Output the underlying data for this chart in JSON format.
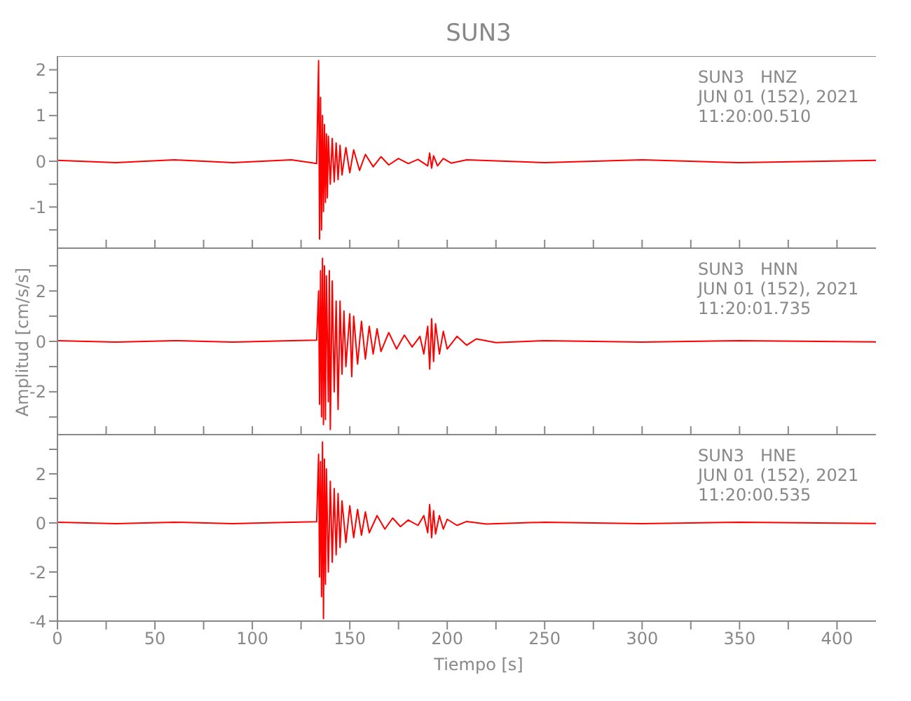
{
  "chart_data": [
    {
      "type": "line",
      "title": "SUN3",
      "annotations": [
        "SUN3   HNZ",
        "JUN 01 (152), 2021",
        "11:20:00.510"
      ],
      "xlim": [
        0,
        420
      ],
      "xticks": [
        0,
        {
          "value": 25,
          "label": null
        },
        50,
        {
          "value": 75,
          "label": null
        },
        100,
        {
          "value": 125,
          "label": null
        },
        150,
        {
          "value": 175,
          "label": null
        },
        200,
        {
          "value": 225,
          "label": null
        },
        250,
        {
          "value": 275,
          "label": null
        },
        300,
        {
          "value": 325,
          "label": null
        },
        350,
        {
          "value": 375,
          "label": null
        },
        400
      ],
      "ylim": [
        -1.9,
        2.3
      ],
      "yticks": [
        {
          "value": -1.5,
          "label": null
        },
        -1,
        {
          "value": -0.5,
          "label": null
        },
        0,
        {
          "value": 0.5,
          "label": null
        },
        1,
        {
          "value": 1.5,
          "label": null
        },
        2
      ],
      "tick_labels": "y",
      "marker": "none",
      "line_style": "solid",
      "series": [
        {
          "color": "#ff0000",
          "x": [
            0,
            30,
            60,
            90,
            120,
            130,
            133,
            134,
            134.5,
            135,
            135.5,
            136,
            136.5,
            137,
            137.5,
            138,
            138.5,
            139,
            140,
            141,
            142,
            143,
            144,
            145,
            146,
            148,
            150,
            152,
            155,
            158,
            162,
            166,
            170,
            175,
            180,
            185,
            190,
            191,
            192,
            193,
            195,
            198,
            202,
            210,
            250,
            300,
            350,
            420
          ],
          "values": [
            0.02,
            -0.03,
            0.03,
            -0.03,
            0.03,
            -0.03,
            -0.05,
            2.2,
            -1.7,
            1.4,
            -1.5,
            1.0,
            -1.1,
            0.8,
            -0.9,
            0.6,
            -0.8,
            0.55,
            -0.5,
            0.5,
            -0.45,
            0.4,
            -0.4,
            0.35,
            -0.3,
            0.3,
            -0.25,
            0.25,
            -0.2,
            0.15,
            -0.12,
            0.1,
            -0.08,
            0.06,
            -0.05,
            0.04,
            -0.1,
            0.18,
            -0.15,
            0.12,
            -0.1,
            0.06,
            -0.04,
            0.03,
            -0.03,
            0.03,
            -0.03,
            0.02
          ]
        }
      ]
    },
    {
      "type": "line",
      "ylabel": "Amplitud [cm/s/s]",
      "annotations": [
        "SUN3   HNN",
        "JUN 01 (152), 2021",
        "11:20:01.735"
      ],
      "xlim": [
        0,
        420
      ],
      "xticks": [
        0,
        {
          "value": 25,
          "label": null
        },
        50,
        {
          "value": 75,
          "label": null
        },
        100,
        {
          "value": 125,
          "label": null
        },
        150,
        {
          "value": 175,
          "label": null
        },
        200,
        {
          "value": 225,
          "label": null
        },
        250,
        {
          "value": 275,
          "label": null
        },
        300,
        {
          "value": 325,
          "label": null
        },
        350,
        {
          "value": 375,
          "label": null
        },
        400
      ],
      "ylim": [
        -3.7,
        3.7
      ],
      "yticks": [
        {
          "value": -3,
          "label": null
        },
        -2,
        {
          "value": -1,
          "label": null
        },
        0,
        {
          "value": 1,
          "label": null
        },
        2,
        {
          "value": 3,
          "label": null
        }
      ],
      "tick_labels": "y",
      "marker": "none",
      "line_style": "solid",
      "series": [
        {
          "color": "#ff0000",
          "x": [
            0,
            30,
            60,
            90,
            120,
            133,
            134,
            134.5,
            135,
            135.5,
            136,
            136.5,
            137,
            137.5,
            138,
            139,
            139.5,
            140,
            141,
            142,
            143,
            144,
            145,
            146,
            147,
            148,
            150,
            151,
            152,
            154,
            156,
            158,
            160,
            162,
            164,
            166,
            170,
            174,
            178,
            182,
            186,
            188,
            190,
            191,
            192,
            193,
            194,
            196,
            198,
            200,
            205,
            210,
            215,
            225,
            250,
            300,
            350,
            420
          ],
          "values": [
            0.03,
            -0.03,
            0.03,
            -0.03,
            0.03,
            0.05,
            2.0,
            -2.5,
            2.8,
            -3.0,
            3.3,
            -3.3,
            3.0,
            -3.1,
            2.6,
            -2.4,
            2.8,
            -3.5,
            2.4,
            -2.0,
            1.6,
            -2.7,
            1.6,
            -1.3,
            1.2,
            -1.0,
            1.1,
            -1.4,
            1.0,
            -0.9,
            0.8,
            -0.7,
            0.6,
            -0.5,
            0.5,
            -0.4,
            0.35,
            -0.3,
            0.25,
            -0.22,
            0.2,
            -0.5,
            0.6,
            -1.1,
            0.9,
            -0.8,
            0.7,
            -0.5,
            0.4,
            -0.3,
            0.2,
            -0.15,
            0.1,
            -0.05,
            0.03,
            -0.03,
            0.03,
            -0.02
          ]
        }
      ]
    },
    {
      "type": "line",
      "xlabel": "Tiempo [s]",
      "annotations": [
        "SUN3   HNE",
        "JUN 01 (152), 2021",
        "11:20:00.535"
      ],
      "xlim": [
        0,
        420
      ],
      "xticks": [
        0,
        {
          "value": 25,
          "label": null
        },
        50,
        {
          "value": 75,
          "label": null
        },
        100,
        {
          "value": 125,
          "label": null
        },
        150,
        {
          "value": 175,
          "label": null
        },
        200,
        {
          "value": 225,
          "label": null
        },
        250,
        {
          "value": 275,
          "label": null
        },
        300,
        {
          "value": 325,
          "label": null
        },
        350,
        {
          "value": 375,
          "label": null
        },
        400
      ],
      "ylim": [
        -4,
        3.6
      ],
      "yticks": [
        -4,
        {
          "value": -3,
          "label": null
        },
        -2,
        {
          "value": -1,
          "label": null
        },
        0,
        {
          "value": 1,
          "label": null
        },
        2,
        {
          "value": 3,
          "label": null
        }
      ],
      "marker": "none",
      "line_style": "solid",
      "series": [
        {
          "color": "#ff0000",
          "x": [
            0,
            30,
            60,
            90,
            120,
            133,
            134,
            134.5,
            135,
            135.5,
            136,
            136.5,
            137,
            137.5,
            138,
            139,
            140,
            141,
            142,
            143,
            144,
            145,
            146,
            148,
            150,
            152,
            154,
            156,
            158,
            160,
            164,
            168,
            172,
            176,
            180,
            185,
            188,
            190,
            191,
            192,
            193,
            194,
            196,
            198,
            200,
            205,
            210,
            220,
            250,
            300,
            350,
            420
          ],
          "values": [
            0.03,
            -0.03,
            0.03,
            -0.03,
            0.03,
            0.05,
            2.8,
            -2.2,
            2.5,
            -3.0,
            3.3,
            -3.9,
            2.6,
            -2.5,
            2.2,
            -2.0,
            1.7,
            -1.6,
            1.4,
            -1.3,
            1.2,
            -1.0,
            0.9,
            -0.8,
            0.7,
            -0.6,
            0.55,
            -0.5,
            0.45,
            -0.4,
            0.3,
            -0.25,
            0.2,
            -0.15,
            0.12,
            -0.1,
            0.3,
            -0.4,
            0.75,
            -0.6,
            0.5,
            -0.45,
            0.3,
            -0.25,
            0.15,
            -0.1,
            0.06,
            -0.04,
            0.03,
            -0.03,
            0.03,
            -0.02
          ]
        }
      ]
    }
  ]
}
